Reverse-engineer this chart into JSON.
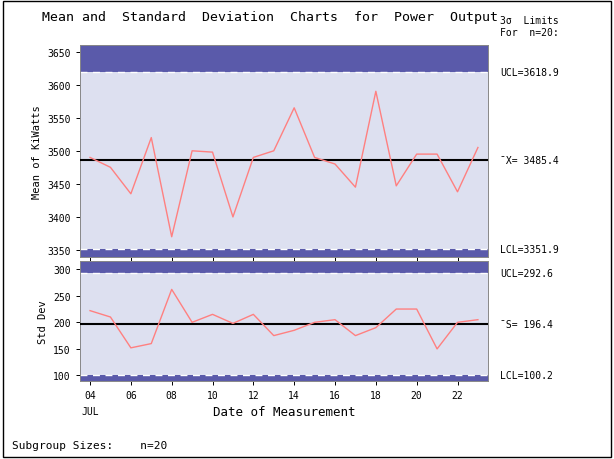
{
  "title": "Mean and  Standard  Deviation  Charts  for  Power  Output",
  "x_dates": [
    4,
    5,
    6,
    7,
    8,
    9,
    10,
    11,
    12,
    13,
    14,
    15,
    16,
    17,
    18,
    19,
    20,
    21,
    22,
    23
  ],
  "mean_values": [
    3490,
    3475,
    3435,
    3520,
    3370,
    3500,
    3498,
    3400,
    3490,
    3500,
    3565,
    3490,
    3480,
    3445,
    3590,
    3447,
    3495,
    3495,
    3438,
    3505
  ],
  "std_values": [
    222,
    210,
    152,
    160,
    262,
    200,
    215,
    198,
    215,
    175,
    185,
    200,
    205,
    175,
    190,
    225,
    225,
    150,
    200,
    205
  ],
  "mean_cl": 3485.4,
  "mean_ucl": 3618.9,
  "mean_lcl": 3351.9,
  "mean_ylim": [
    3340,
    3660
  ],
  "std_cl": 196.4,
  "std_ucl": 292.6,
  "std_lcl": 100.2,
  "std_ylim": [
    90,
    315
  ],
  "xlabel": "Date of Measurement",
  "mean_ylabel": "Mean of KiWatts",
  "std_ylabel": "Std Dev",
  "footnote": "Subgroup Sizes:    n=20",
  "right_header_line1": "3σ  Limits",
  "right_header_line2": "For  n=20:",
  "bg_light": "#dde0f0",
  "bg_dark": "#5a5aaa",
  "line_color": "#ff8080",
  "cl_color": "black",
  "dashed_color": "white",
  "outer_bg": "#ffffff",
  "mean_yticks": [
    3350,
    3400,
    3450,
    3500,
    3550,
    3600,
    3650
  ],
  "std_yticks": [
    100,
    150,
    200,
    250,
    300
  ],
  "xticks": [
    4,
    6,
    8,
    10,
    12,
    14,
    16,
    18,
    20,
    22
  ]
}
